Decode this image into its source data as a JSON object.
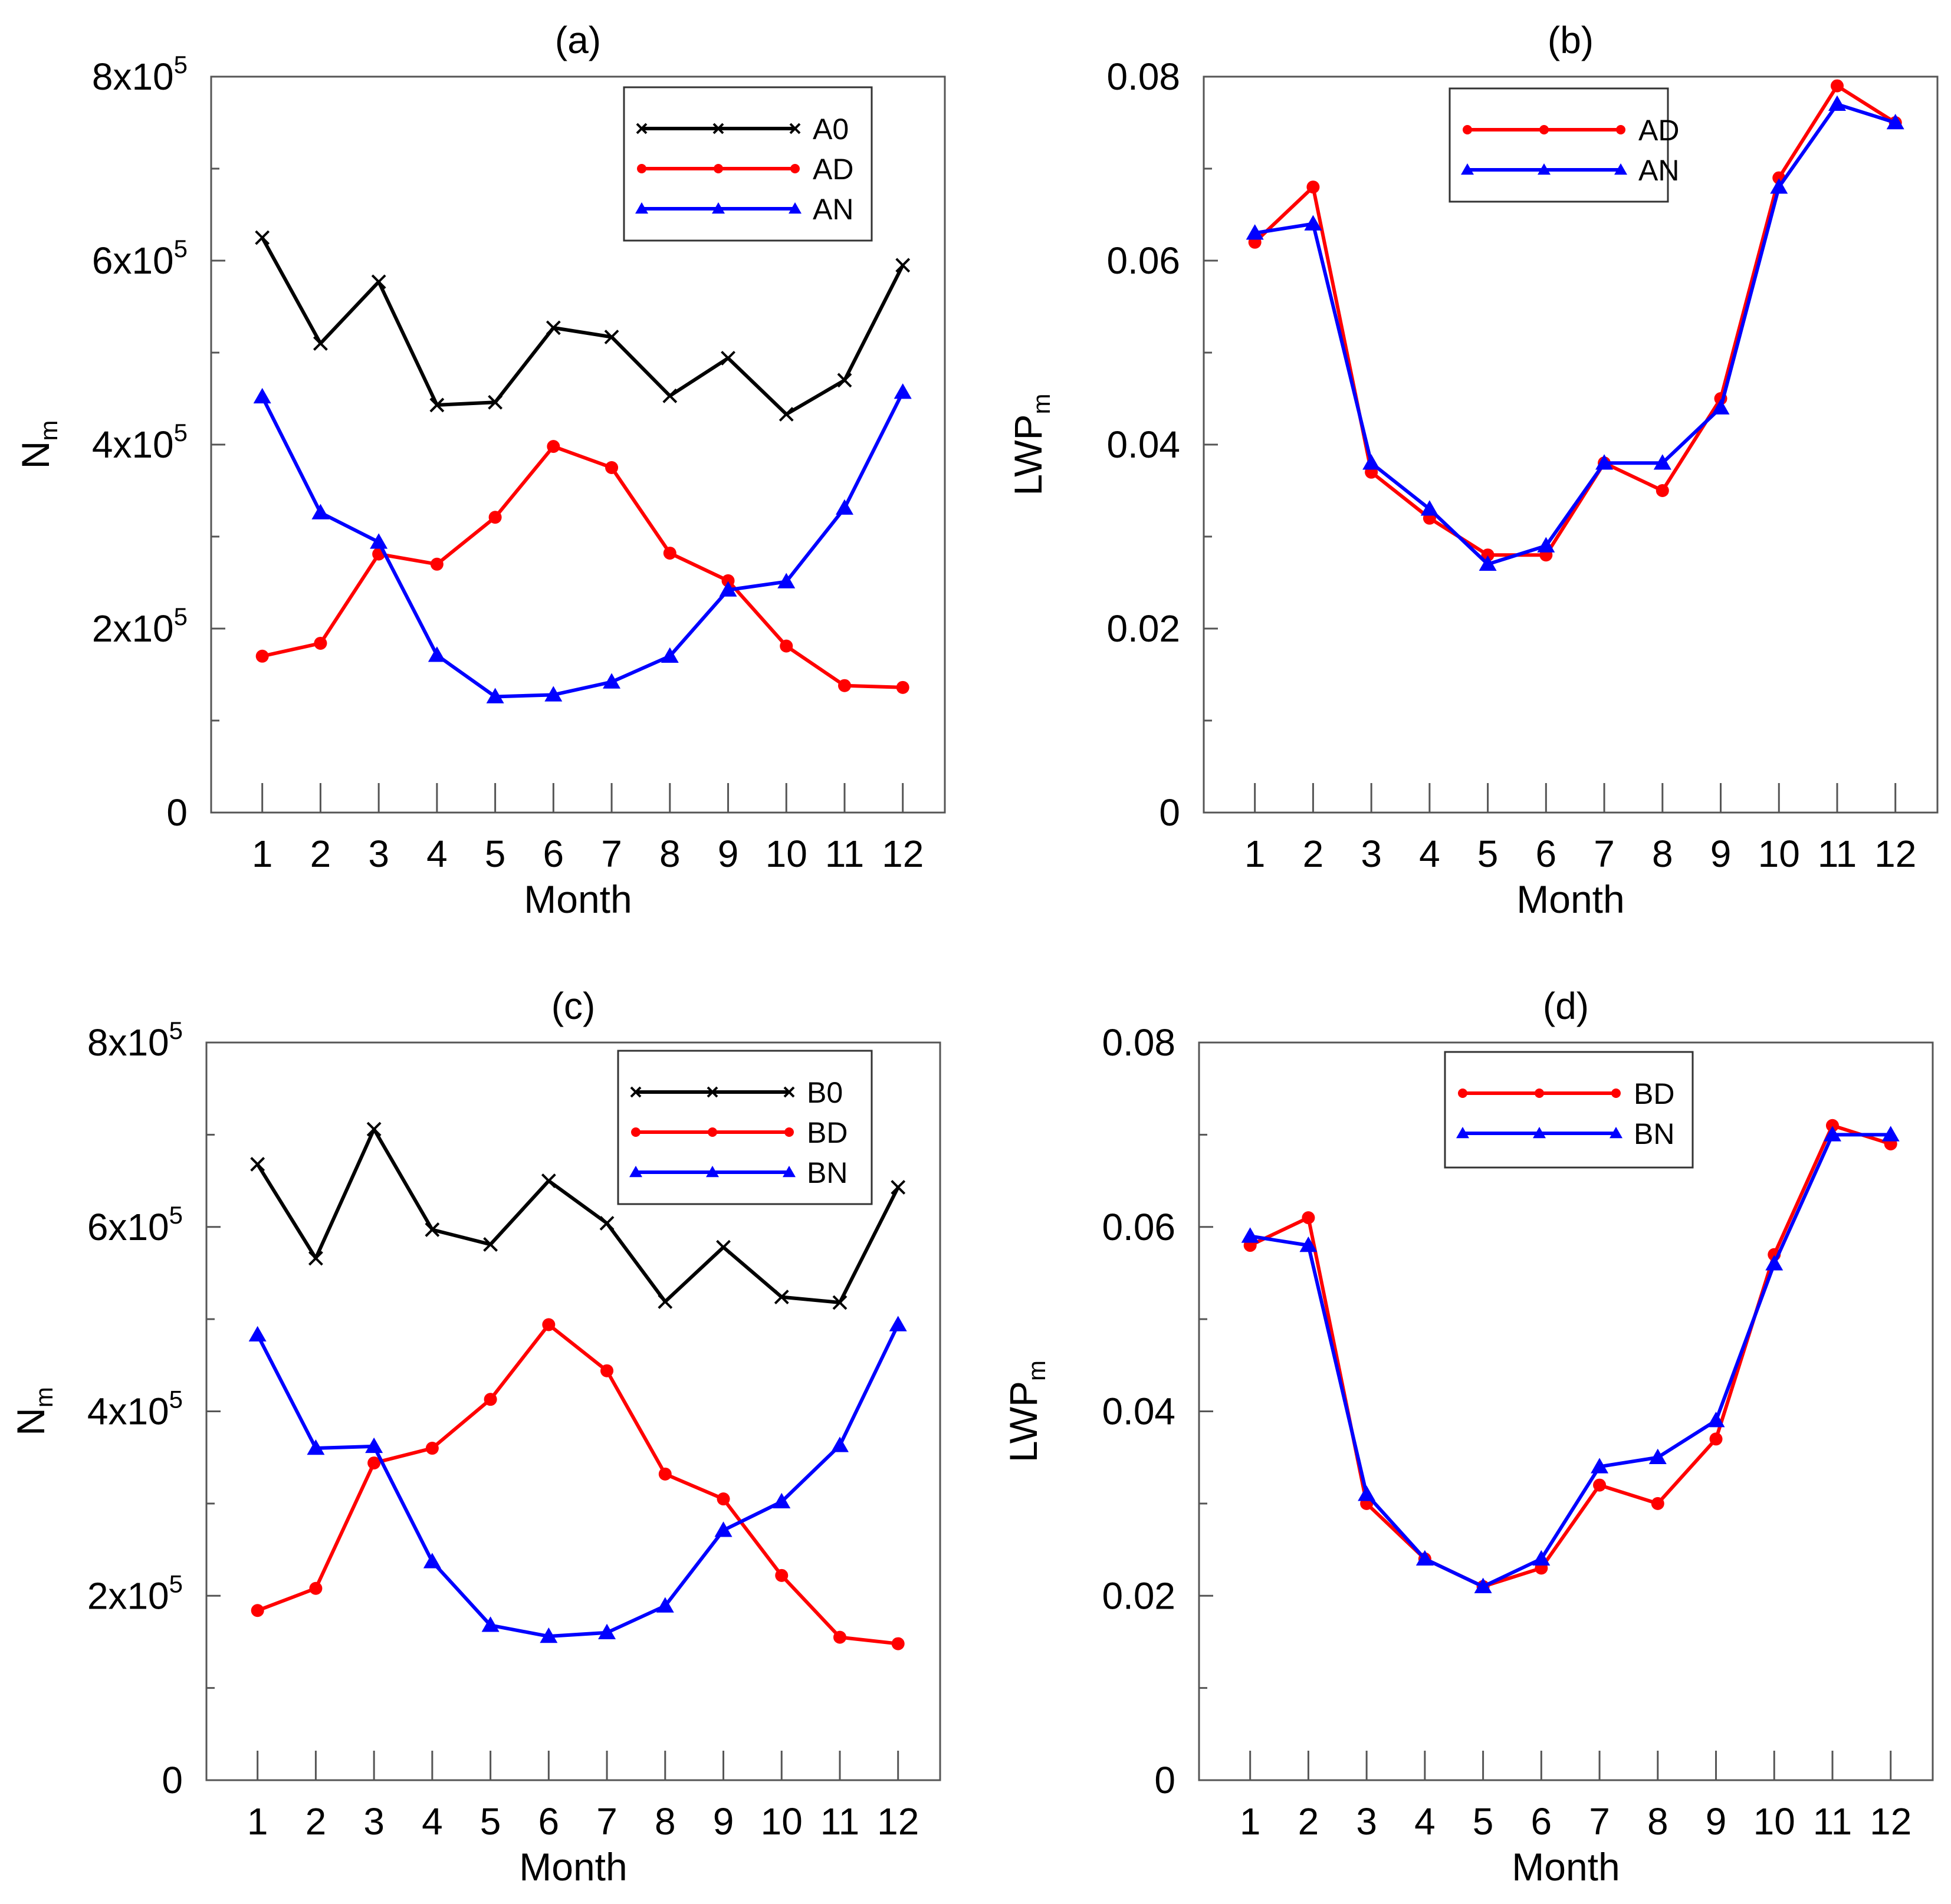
{
  "figure": {
    "panels": [
      {
        "id": "a",
        "title": "(a)",
        "xlabel": "Month",
        "ylabel": {
          "base": "N",
          "sub": "m"
        },
        "yaxis": {
          "min": 0,
          "max": 800000,
          "major_ticks": [
            0,
            200000,
            400000,
            600000,
            800000
          ],
          "minor_ticks": [
            100000,
            300000,
            500000,
            700000
          ],
          "tick_labels": [
            {
              "value": 0,
              "text": "0"
            },
            {
              "value": 200000,
              "mantissa": "2x10",
              "exp": "5"
            },
            {
              "value": 400000,
              "mantissa": "4x10",
              "exp": "5"
            },
            {
              "value": 600000,
              "mantissa": "6x10",
              "exp": "5"
            },
            {
              "value": 800000,
              "mantissa": "8x10",
              "exp": "5"
            }
          ]
        }
      },
      {
        "id": "b",
        "title": "(b)",
        "xlabel": "Month",
        "ylabel": {
          "base": "LWP",
          "sub": "m"
        },
        "yaxis": {
          "min": 0,
          "max": 0.08,
          "major_ticks": [
            0,
            0.02,
            0.04,
            0.06,
            0.08
          ],
          "minor_ticks": [
            0.01,
            0.03,
            0.05,
            0.07
          ],
          "tick_labels": [
            {
              "value": 0,
              "text": "0"
            },
            {
              "value": 0.02,
              "text": "0.02"
            },
            {
              "value": 0.04,
              "text": "0.04"
            },
            {
              "value": 0.06,
              "text": "0.06"
            },
            {
              "value": 0.08,
              "text": "0.08"
            }
          ]
        }
      },
      {
        "id": "c",
        "title": "(c)",
        "xlabel": "Month",
        "ylabel": {
          "base": "N",
          "sub": "m"
        },
        "yaxis": {
          "min": 0,
          "max": 800000,
          "major_ticks": [
            0,
            200000,
            400000,
            600000,
            800000
          ],
          "minor_ticks": [
            100000,
            300000,
            500000,
            700000
          ],
          "tick_labels": [
            {
              "value": 0,
              "text": "0"
            },
            {
              "value": 200000,
              "mantissa": "2x10",
              "exp": "5"
            },
            {
              "value": 400000,
              "mantissa": "4x10",
              "exp": "5"
            },
            {
              "value": 600000,
              "mantissa": "6x10",
              "exp": "5"
            },
            {
              "value": 800000,
              "mantissa": "8x10",
              "exp": "5"
            }
          ]
        }
      },
      {
        "id": "d",
        "title": "(d)",
        "xlabel": "Month",
        "ylabel": {
          "base": "LWP",
          "sub": "m"
        },
        "yaxis": {
          "min": 0,
          "max": 0.08,
          "major_ticks": [
            0,
            0.02,
            0.04,
            0.06,
            0.08
          ],
          "minor_ticks": [
            0.01,
            0.03,
            0.05,
            0.07
          ],
          "tick_labels": [
            {
              "value": 0,
              "text": "0"
            },
            {
              "value": 0.02,
              "text": "0.02"
            },
            {
              "value": 0.04,
              "text": "0.04"
            },
            {
              "value": 0.06,
              "text": "0.06"
            },
            {
              "value": 0.08,
              "text": "0.08"
            }
          ]
        }
      }
    ]
  },
  "chart_data": [
    {
      "type": "line",
      "title": "(a)",
      "xlabel": "Month",
      "ylabel": "Nm",
      "categories": [
        "1",
        "2",
        "3",
        "4",
        "5",
        "6",
        "7",
        "8",
        "9",
        "10",
        "11",
        "12"
      ],
      "ylim": [
        0,
        800000
      ],
      "legend_position": "top-right",
      "series": [
        {
          "name": "A0",
          "color": "#000000",
          "marker": "x",
          "values": [
            625000,
            510000,
            577000,
            443000,
            446000,
            527000,
            517000,
            453000,
            494000,
            433000,
            470000,
            595000
          ]
        },
        {
          "name": "AD",
          "color": "#ff0000",
          "marker": "circle",
          "values": [
            170000,
            184000,
            281000,
            270000,
            321000,
            398000,
            375000,
            282000,
            252000,
            181000,
            138000,
            136000
          ]
        },
        {
          "name": "AN",
          "color": "#0000ff",
          "marker": "triangle",
          "values": [
            452000,
            326000,
            294000,
            171000,
            126000,
            128000,
            142000,
            170000,
            242000,
            251000,
            331000,
            457000
          ]
        }
      ]
    },
    {
      "type": "line",
      "title": "(b)",
      "xlabel": "Month",
      "ylabel": "LWPm",
      "categories": [
        "1",
        "2",
        "3",
        "4",
        "5",
        "6",
        "7",
        "8",
        "9",
        "10",
        "11",
        "12"
      ],
      "ylim": [
        0,
        0.08
      ],
      "legend_position": "top-center",
      "series": [
        {
          "name": "AD",
          "color": "#ff0000",
          "marker": "circle",
          "values": [
            0.062,
            0.068,
            0.037,
            0.032,
            0.028,
            0.028,
            0.038,
            0.035,
            0.045,
            0.069,
            0.079,
            0.075
          ]
        },
        {
          "name": "AN",
          "color": "#0000ff",
          "marker": "triangle",
          "values": [
            0.063,
            0.064,
            0.038,
            0.033,
            0.027,
            0.029,
            0.038,
            0.038,
            0.044,
            0.068,
            0.077,
            0.075
          ]
        }
      ]
    },
    {
      "type": "line",
      "title": "(c)",
      "xlabel": "Month",
      "ylabel": "Nm",
      "categories": [
        "1",
        "2",
        "3",
        "4",
        "5",
        "6",
        "7",
        "8",
        "9",
        "10",
        "11",
        "12"
      ],
      "ylim": [
        0,
        800000
      ],
      "legend_position": "top-right",
      "series": [
        {
          "name": "B0",
          "color": "#000000",
          "marker": "x",
          "values": [
            668000,
            566000,
            706000,
            597000,
            581000,
            650000,
            604000,
            519000,
            578000,
            524000,
            518000,
            643000
          ]
        },
        {
          "name": "BD",
          "color": "#ff0000",
          "marker": "circle",
          "values": [
            184000,
            208000,
            344000,
            360000,
            413000,
            494000,
            444000,
            332000,
            305000,
            222000,
            155000,
            148000
          ]
        },
        {
          "name": "BN",
          "color": "#0000ff",
          "marker": "triangle",
          "values": [
            483000,
            360000,
            362000,
            237000,
            168000,
            156000,
            160000,
            189000,
            271000,
            302000,
            363000,
            494000
          ]
        }
      ]
    },
    {
      "type": "line",
      "title": "(d)",
      "xlabel": "Month",
      "ylabel": "LWPm",
      "categories": [
        "1",
        "2",
        "3",
        "4",
        "5",
        "6",
        "7",
        "8",
        "9",
        "10",
        "11",
        "12"
      ],
      "ylim": [
        0,
        0.08
      ],
      "legend_position": "top-center",
      "series": [
        {
          "name": "BD",
          "color": "#ff0000",
          "marker": "circle",
          "values": [
            0.058,
            0.061,
            0.03,
            0.024,
            0.021,
            0.023,
            0.032,
            0.03,
            0.037,
            0.057,
            0.071,
            0.069
          ]
        },
        {
          "name": "BN",
          "color": "#0000ff",
          "marker": "triangle",
          "values": [
            0.059,
            0.058,
            0.031,
            0.024,
            0.021,
            0.024,
            0.034,
            0.035,
            0.039,
            0.056,
            0.07,
            0.07
          ]
        }
      ]
    }
  ]
}
